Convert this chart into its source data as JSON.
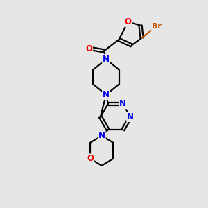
{
  "background_color": "#e6e6e6",
  "bond_color": "#000000",
  "bond_width": 1.6,
  "atom_colors": {
    "N": "#0000ee",
    "O": "#ee0000",
    "Br": "#bb5500",
    "C": "#000000"
  },
  "font_size_atom": 8.5,
  "font_size_br": 8.0,
  "xlim": [
    0,
    10
  ],
  "ylim": [
    0,
    10
  ]
}
